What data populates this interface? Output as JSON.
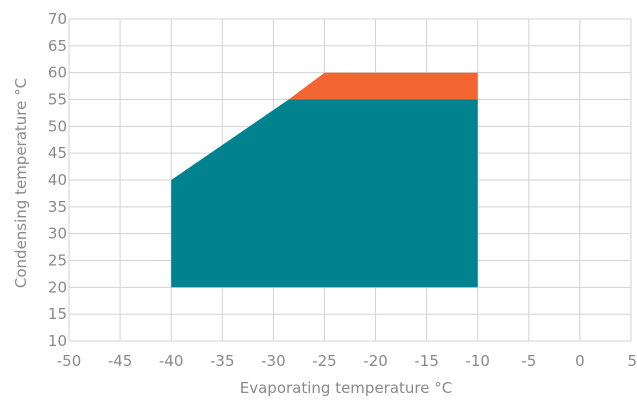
{
  "chart_data": {
    "type": "area",
    "title": "",
    "xlabel": "Evaporating temperature °C",
    "ylabel": "Condensing temperature °C",
    "xlim": [
      -50,
      5
    ],
    "ylim": [
      10,
      70
    ],
    "x_ticks": [
      "-50",
      "-45",
      "-40",
      "-35",
      "-30",
      "-25",
      "-20",
      "-15",
      "-10",
      "-5",
      "0",
      "5"
    ],
    "y_ticks": [
      "10",
      "15",
      "20",
      "25",
      "30",
      "35",
      "40",
      "45",
      "50",
      "55",
      "60",
      "65",
      "70"
    ],
    "grid": true,
    "legend": "none",
    "series": [
      {
        "color": "#00838f",
        "points": [
          [
            -40,
            20
          ],
          [
            -40,
            40
          ],
          [
            -28.5,
            55
          ],
          [
            -10,
            55
          ],
          [
            -10,
            20
          ]
        ]
      },
      {
        "color": "#f26532",
        "points": [
          [
            -28.5,
            55
          ],
          [
            -25,
            60
          ],
          [
            -10,
            60
          ],
          [
            -10,
            55
          ]
        ]
      }
    ]
  }
}
